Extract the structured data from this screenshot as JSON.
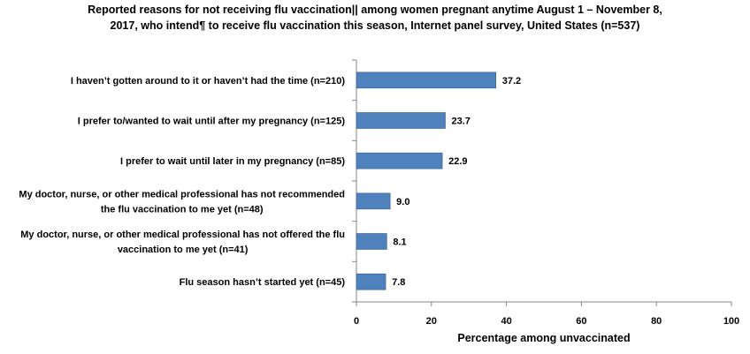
{
  "chart_data": {
    "type": "bar",
    "orientation": "horizontal",
    "title_line1": "Reported reasons for not receiving flu vaccination|| among women pregnant anytime August 1 – November 8,",
    "title_line2": "2017, who intend¶  to receive flu vaccination this season, Internet panel survey, United States (n=537)",
    "categories": [
      [
        "I haven’t gotten around to it or haven’t had the time (n=210)"
      ],
      [
        "I prefer to/wanted to wait until after my pregnancy (n=125)"
      ],
      [
        "I prefer to wait until later in my pregnancy (n=85)"
      ],
      [
        "My doctor, nurse, or other medical professional has not recommended",
        "the flu vaccination to me yet (n=48)"
      ],
      [
        "My doctor, nurse, or other medical professional has not offered the flu",
        "vaccination to me yet (n=41)"
      ],
      [
        "Flu season hasn’t started yet (n=45)"
      ]
    ],
    "values": [
      37.2,
      23.7,
      22.9,
      9.0,
      8.1,
      7.8
    ],
    "value_labels": [
      "37.2",
      "23.7",
      "22.9",
      "9.0",
      "8.1",
      "7.8"
    ],
    "xlabel": "Percentage among unvaccinated",
    "xlim": [
      0,
      100
    ],
    "xticks": [
      0,
      20,
      40,
      60,
      80,
      100
    ],
    "bar_color": "#4F81BD",
    "bar_border_color": "#385D8A",
    "axis_color": "#868686",
    "grid": false,
    "legend": "none"
  }
}
